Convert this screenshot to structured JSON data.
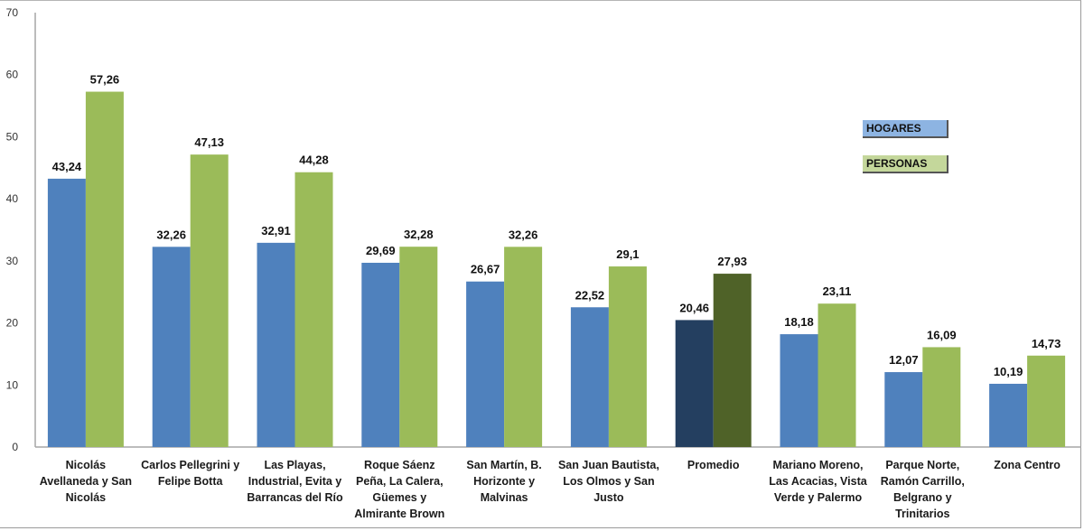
{
  "chart_data": {
    "type": "bar",
    "title": "",
    "xlabel": "",
    "ylabel": "",
    "ylim": [
      0,
      70
    ],
    "yticks": [
      0,
      10,
      20,
      30,
      40,
      50,
      60,
      70
    ],
    "grid": false,
    "legend_position": "right",
    "categories": [
      [
        "Nicolás",
        "Avellaneda y San",
        "Nicolás"
      ],
      [
        "Carlos Pellegrini y",
        "Felipe Botta"
      ],
      [
        "Las Playas,",
        "Industrial, Evita y",
        "Barrancas del Río"
      ],
      [
        "Roque Sáenz",
        "Peña, La Calera,",
        "Güemes y",
        "Almirante Brown"
      ],
      [
        "San Martín, B.",
        "Horizonte y",
        "Malvinas"
      ],
      [
        "San Juan Bautista,",
        "Los Olmos y San",
        "Justo"
      ],
      [
        "Promedio"
      ],
      [
        "Mariano Moreno,",
        "Las Acacias, Vista",
        "Verde y Palermo"
      ],
      [
        "Parque Norte,",
        "Ramón Carrillo,",
        "Belgrano y",
        "Trinitarios"
      ],
      [
        "Zona Centro"
      ]
    ],
    "series": [
      {
        "name": "HOGARES",
        "color": "#4f81bd",
        "highlight_color": "#243f60",
        "values": [
          43.24,
          32.26,
          32.91,
          29.69,
          26.67,
          22.52,
          20.46,
          18.18,
          12.07,
          10.19
        ],
        "labels": [
          "43,24",
          "32,26",
          "32,91",
          "29,69",
          "26,67",
          "22,52",
          "20,46",
          "18,18",
          "12,07",
          "10,19"
        ]
      },
      {
        "name": "PERSONAS",
        "color": "#9bbb59",
        "highlight_color": "#4f6228",
        "values": [
          57.26,
          47.13,
          44.28,
          32.28,
          32.26,
          29.1,
          27.93,
          23.11,
          16.09,
          14.73
        ],
        "labels": [
          "57,26",
          "47,13",
          "44,28",
          "32,28",
          "32,26",
          "29,1",
          "27,93",
          "23,11",
          "16,09",
          "14,73"
        ]
      }
    ],
    "highlight_category_index": 6
  },
  "legend": {
    "items": [
      {
        "label": "HOGARES",
        "color": "#4f81bd"
      },
      {
        "label": "PERSONAS",
        "color": "#9bbb59"
      }
    ]
  }
}
